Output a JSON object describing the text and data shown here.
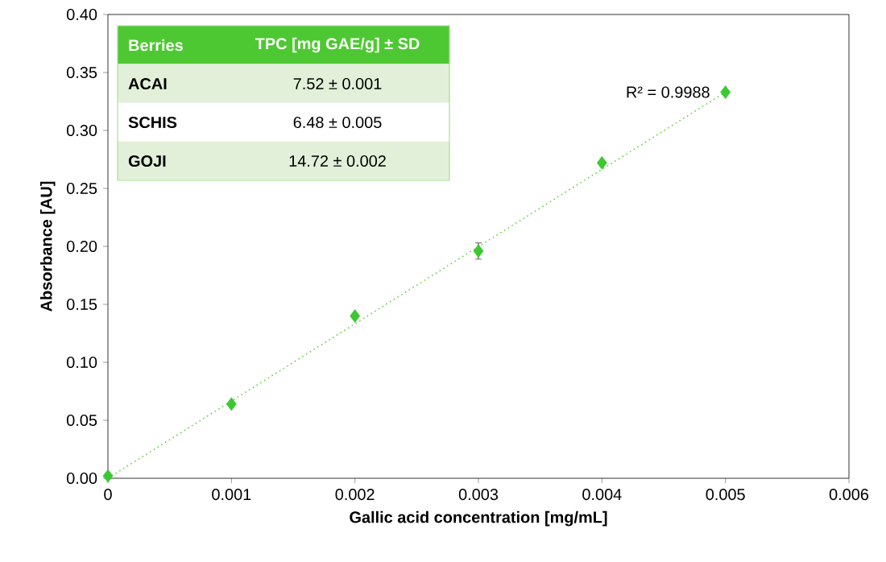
{
  "chart_data": {
    "type": "scatter",
    "xlabel": "Gallic acid concentration [mg/mL]",
    "ylabel": "Absorbance [AU]",
    "xlim": [
      0,
      0.006
    ],
    "xticks": [
      0,
      0.001,
      0.002,
      0.003,
      0.004,
      0.005,
      0.006
    ],
    "ylim": [
      0,
      0.4
    ],
    "yticks": [
      {
        "value": 0,
        "label": "0.00"
      },
      {
        "value": 0.05,
        "label": "0.05"
      },
      {
        "value": 0.1,
        "label": "0.10"
      },
      {
        "value": 0.15,
        "label": "0.15"
      },
      {
        "value": 0.2,
        "label": "0.20"
      },
      {
        "value": 0.25,
        "label": "0.25"
      },
      {
        "value": 0.3,
        "label": "0.30"
      },
      {
        "value": 0.35,
        "label": "0.35"
      },
      {
        "value": 0.4,
        "label": "0.40"
      }
    ],
    "marker": "diamond",
    "grid": false,
    "series": [
      {
        "type": "line",
        "color": "#5fd23c",
        "x": [
          0,
          0.005
        ],
        "values": [
          0.0,
          0.333
        ],
        "line_style": "dotted",
        "marker": "none"
      },
      {
        "color": "#3cc832",
        "x": [
          0,
          0.001,
          0.002,
          0.003,
          0.004,
          0.005
        ],
        "values": [
          0.002,
          0.064,
          0.14,
          0.196,
          0.272,
          0.333
        ],
        "errors": [
          null,
          null,
          null,
          0.007,
          null,
          null
        ]
      }
    ],
    "annotations": [
      {
        "text": "R² = 0.9988",
        "x": 0.005,
        "y": 0.333
      },
      "Berries",
      "TPC [mg GAE/g] ± SD",
      "ACAI",
      "7.52 ± 0.001",
      "SCHIS",
      "6.48 ± 0.005",
      "GOJI",
      "14.72 ± 0.002"
    ]
  }
}
